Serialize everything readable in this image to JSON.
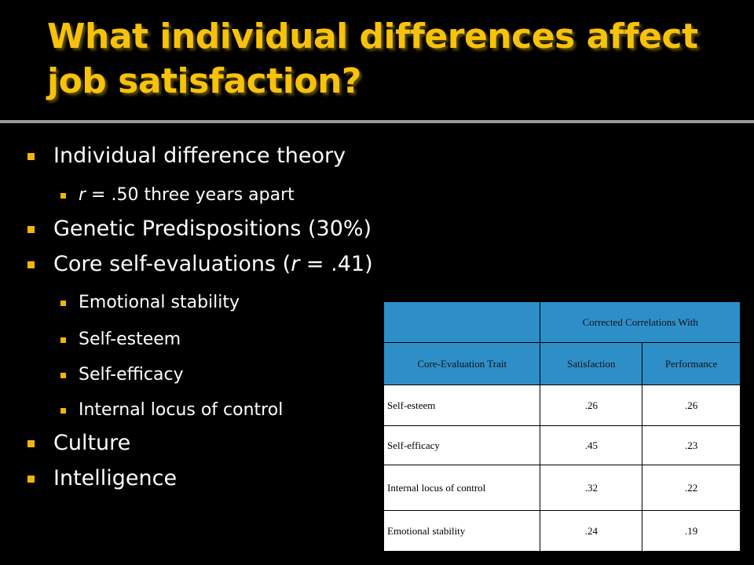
{
  "title": "What individual differences affect job satisfaction?",
  "bullets": {
    "b1": "Individual difference theory",
    "b1_sub_r": "r",
    "b1_sub_rest": " = .50 three years apart",
    "b2": "Genetic Predispositions (30%)",
    "b3_pre": "Core self-evaluations (",
    "b3_r": "r",
    "b3_post": " = .41)",
    "sub1": "Emotional stability",
    "sub2": "Self-esteem",
    "sub3": "Self-efficacy",
    "sub4": "Internal locus of control",
    "b4": "Culture",
    "b5": "Intelligence"
  },
  "table": {
    "group_header": "Corrected Correlations With",
    "col_trait": "Core-Evaluation Trait",
    "col_sat": "Satisfaction",
    "col_perf": "Performance",
    "rows": [
      {
        "trait": "Self-esteem",
        "sat": ".26",
        "perf": ".26"
      },
      {
        "trait": "Self-efficacy",
        "sat": ".45",
        "perf": ".23"
      },
      {
        "trait": "Internal locus of control",
        "sat": ".32",
        "perf": ".22"
      },
      {
        "trait": "Emotional stability",
        "sat": ".24",
        "perf": ".19"
      }
    ]
  },
  "colors": {
    "title": "#f7c20c",
    "bullet": "#f2b705",
    "table_header": "#2e8fc8"
  }
}
